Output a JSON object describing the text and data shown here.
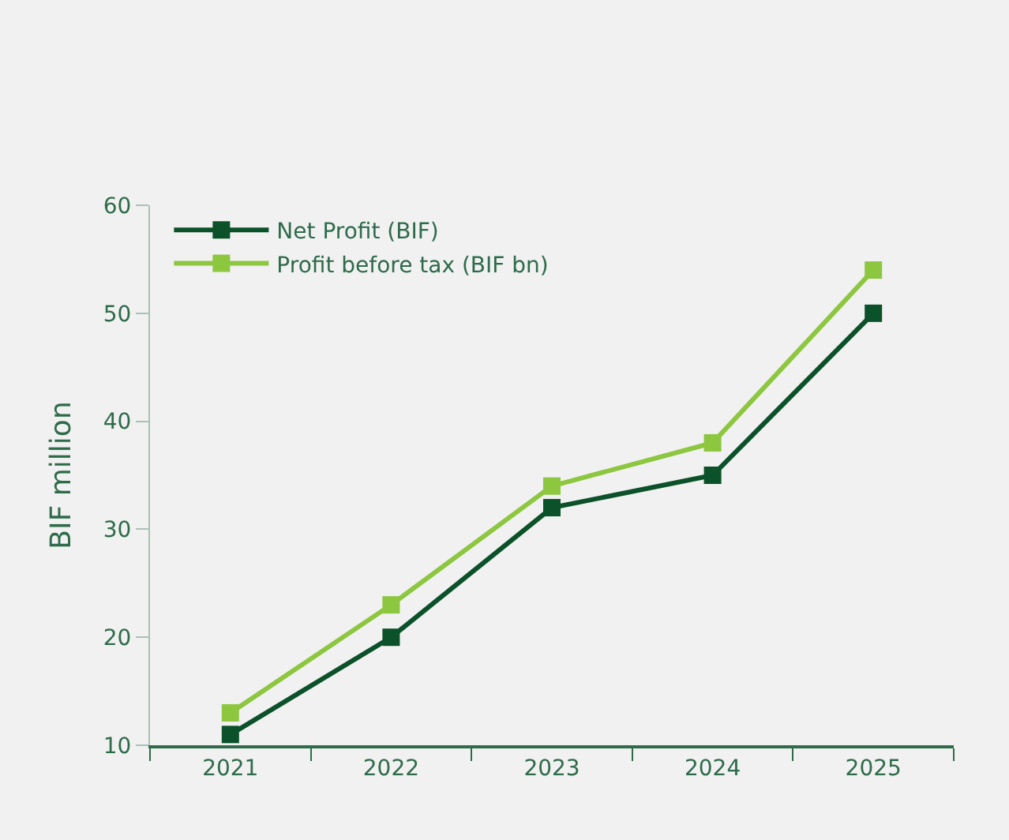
{
  "chart_data": {
    "type": "line",
    "ylabel": "BIF million",
    "categories": [
      "2021",
      "2022",
      "2023",
      "2024",
      "2025"
    ],
    "series": [
      {
        "name": "Net Profit (BIF)",
        "color": "#0b5129",
        "values": [
          11,
          20,
          32,
          35,
          50
        ]
      },
      {
        "name": "Profit before tax (BIF bn)",
        "color": "#8dc63f",
        "values": [
          13,
          23,
          34,
          38,
          54
        ]
      }
    ],
    "ylim": [
      10,
      60
    ],
    "yticks": [
      10,
      20,
      30,
      40,
      50,
      60
    ],
    "grid": false,
    "legend": "top left",
    "marker": "square",
    "line_style": "solid"
  }
}
